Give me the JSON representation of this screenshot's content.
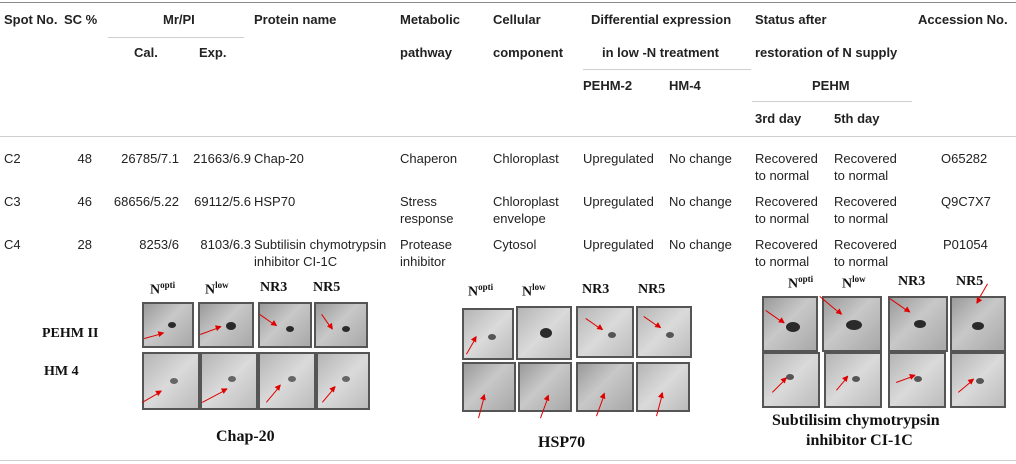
{
  "headers": {
    "spot_no": "Spot No.",
    "sc": "SC %",
    "mrpi": "Mr/PI",
    "cal": "Cal.",
    "exp": "Exp.",
    "protein": "Protein name",
    "metabolic1": "Metabolic",
    "metabolic2": "pathway",
    "cellular1": "Cellular",
    "cellular2": "component",
    "diff1": "Differential expression",
    "diff2": "in low -N treatment",
    "pehm2": "PEHM-2",
    "hm4": "HM-4",
    "status1": "Status after",
    "status2": "restoration of N supply",
    "pehm": "PEHM",
    "day3": "3rd day",
    "day5": "5th day",
    "accession": "Accession No."
  },
  "rows": [
    {
      "spot": "C2",
      "sc": "48",
      "cal": "26785/7.1",
      "exp": "21663/6.9",
      "protein": "Chap-20",
      "metabolic": "Chaperon",
      "cellular": "Chloroplast",
      "pehm2": "Upregulated",
      "hm4": "No change",
      "day3": "Recovered to normal",
      "day5": "Recovered to normal",
      "accession": "O65282"
    },
    {
      "spot": "C3",
      "sc": "46",
      "cal": "68656/5.22",
      "exp": "69112/5.6",
      "protein": "HSP70",
      "metabolic": "Stress response",
      "cellular": "Chloroplast envelope",
      "pehm2": "Upregulated",
      "hm4": "No change",
      "day3": "Recovered to normal",
      "day5": "Recovered to normal",
      "accession": "Q9C7X7"
    },
    {
      "spot": "C4",
      "sc": "28",
      "cal": "8253/6",
      "exp": "8103/6.3",
      "protein": "Subtilisin chymotrypsin inhibitor CI-1C",
      "metabolic": "Protease inhibitor",
      "cellular": "Cytosol",
      "pehm2": "Upregulated",
      "hm4": "No change",
      "day3": "Recovered to normal",
      "day5": "Recovered to normal",
      "accession": "P01054"
    }
  ],
  "figure": {
    "n_opti_base": "N",
    "n_opti_sup": "opti",
    "n_low_base": "N",
    "n_low_sup": "low",
    "nr3": "NR3",
    "nr5": "NR5",
    "row1": "PEHM II",
    "row2": "HM 4",
    "caption1": "Chap-20",
    "caption2": "HSP70",
    "caption3a": "Subtilisim chymotrypsin",
    "caption3b": "inhibitor CI-1C"
  }
}
